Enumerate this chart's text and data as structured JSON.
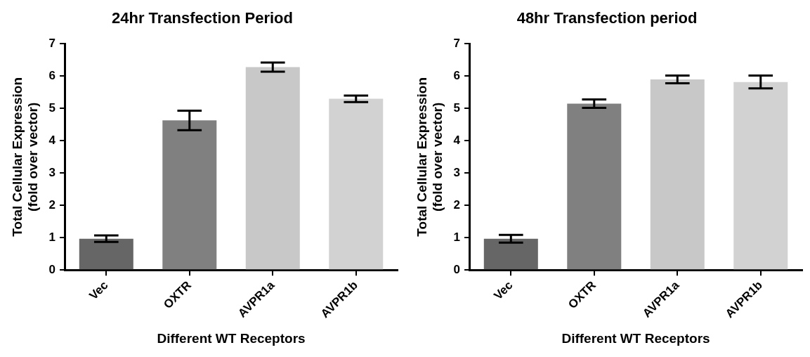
{
  "chart_data": [
    {
      "type": "bar",
      "title": "24hr Transfection Period",
      "xlabel": "Different WT Receptors",
      "ylabel": "Total Cellular Expression\n(fold over vector)",
      "categories": [
        "Vec",
        "OXTR",
        "AVPR1a",
        "AVPR1b"
      ],
      "values": [
        0.97,
        4.63,
        6.28,
        5.3
      ],
      "errors": [
        0.1,
        0.3,
        0.14,
        0.1
      ],
      "colors": [
        "#666666",
        "#808080",
        "#c8c8c8",
        "#d2d2d2"
      ],
      "ylim": [
        0,
        7
      ],
      "yticks": [
        0,
        1,
        2,
        3,
        4,
        5,
        6,
        7
      ],
      "grid": false,
      "legend": false
    },
    {
      "type": "bar",
      "title": "48hr Transfection period",
      "xlabel": "Different WT Receptors",
      "ylabel": "Total Cellular Expression\n(fold over vector)",
      "categories": [
        "Vec",
        "OXTR",
        "AVPR1a",
        "AVPR1b"
      ],
      "values": [
        0.97,
        5.15,
        5.9,
        5.82
      ],
      "errors": [
        0.12,
        0.13,
        0.12,
        0.2
      ],
      "colors": [
        "#666666",
        "#808080",
        "#c8c8c8",
        "#d2d2d2"
      ],
      "ylim": [
        0,
        7
      ],
      "yticks": [
        0,
        1,
        2,
        3,
        4,
        5,
        6,
        7
      ],
      "grid": false,
      "legend": false
    }
  ]
}
